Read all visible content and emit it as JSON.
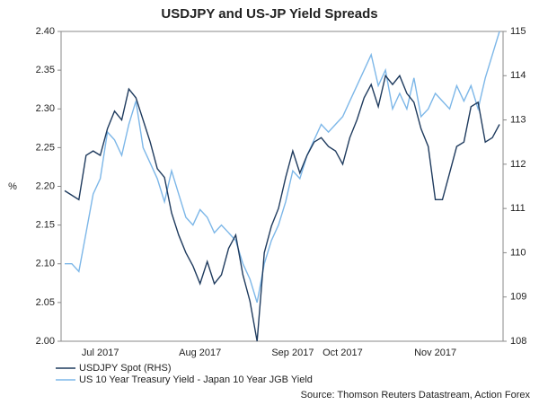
{
  "chart_data": {
    "type": "line",
    "title": "USDJPY and US-JP Yield Spreads",
    "ylabel": "%",
    "source": "Source: Thomson Reuters Datastream, Action Forex",
    "categories": [
      null,
      null,
      null,
      null,
      null,
      "Jul 2017",
      null,
      null,
      null,
      null,
      null,
      null,
      null,
      null,
      null,
      null,
      null,
      null,
      null,
      "Aug 2017",
      null,
      null,
      null,
      null,
      null,
      null,
      null,
      null,
      null,
      null,
      null,
      null,
      "Sep 2017",
      null,
      null,
      null,
      null,
      null,
      null,
      "Oct 2017",
      null,
      null,
      null,
      null,
      null,
      null,
      null,
      null,
      null,
      null,
      null,
      null,
      "Nov 2017",
      null,
      null,
      null,
      null,
      null,
      null,
      null,
      null,
      null
    ],
    "ylim": [
      2.0,
      2.4
    ],
    "yticks": [
      {
        "value": 2.0,
        "label": "2.00"
      },
      2.05,
      {
        "value": 2.1,
        "label": "2.10"
      },
      2.15,
      {
        "value": 2.2,
        "label": "2.20"
      },
      2.25,
      {
        "value": 2.3,
        "label": "2.30"
      },
      2.35,
      {
        "value": 2.4,
        "label": "2.40"
      }
    ],
    "y2lim": [
      108,
      115
    ],
    "y2ticks": [
      108,
      109,
      110,
      111,
      112,
      113,
      114,
      115
    ],
    "series": [
      {
        "name": "USDJPY Spot (RHS)",
        "color": "#1f3b5e",
        "axis": "y2",
        "values": [
          111.4,
          111.3,
          111.2,
          112.2,
          112.3,
          112.2,
          112.8,
          113.2,
          113.0,
          113.7,
          113.5,
          113.0,
          112.5,
          111.9,
          111.7,
          110.9,
          110.4,
          110.0,
          109.7,
          109.3,
          109.8,
          109.3,
          109.5,
          110.1,
          110.4,
          109.5,
          108.9,
          108.0,
          110.0,
          110.6,
          111.0,
          111.7,
          112.3,
          111.8,
          112.2,
          112.5,
          112.6,
          112.4,
          112.3,
          112.0,
          112.6,
          113.0,
          113.5,
          113.8,
          113.3,
          114.0,
          113.8,
          114.0,
          113.6,
          113.4,
          112.8,
          112.4,
          111.2,
          111.2,
          111.8,
          112.4,
          112.5,
          113.3,
          113.4,
          112.5,
          112.6,
          112.9
        ]
      },
      {
        "name": "US 10 Year Treasury Yield - Japan 10 Year JGB Yield",
        "color": "#7db7e8",
        "values": [
          2.1,
          2.1,
          2.09,
          2.14,
          2.19,
          2.21,
          2.27,
          2.26,
          2.24,
          2.28,
          2.31,
          2.25,
          2.23,
          2.21,
          2.18,
          2.22,
          2.19,
          2.16,
          2.15,
          2.17,
          2.16,
          2.14,
          2.15,
          2.14,
          2.13,
          2.1,
          2.08,
          2.05,
          2.1,
          2.13,
          2.15,
          2.18,
          2.22,
          2.21,
          2.24,
          2.26,
          2.28,
          2.27,
          2.28,
          2.29,
          2.31,
          2.33,
          2.35,
          2.37,
          2.33,
          2.35,
          2.3,
          2.32,
          2.3,
          2.34,
          2.29,
          2.3,
          2.32,
          2.31,
          2.3,
          2.33,
          2.31,
          2.33,
          2.3,
          2.34,
          2.37,
          2.4
        ]
      }
    ],
    "legend": "bottom-left"
  }
}
